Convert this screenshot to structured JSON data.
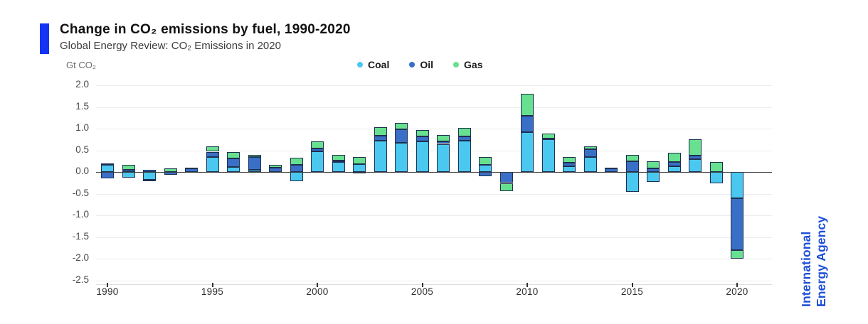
{
  "header": {
    "title": "Change in CO₂ emissions by fuel, 1990-2020",
    "subtitle": "Global Energy Review: CO₂ Emissions in 2020"
  },
  "branding": {
    "logo_line1": "International",
    "logo_line2": "Energy Agency",
    "logo_color": "#1d4fd7",
    "accent_color": "#1433f2"
  },
  "chart_data": {
    "type": "bar",
    "stacked": true,
    "title": "Change in CO₂ emissions by fuel, 1990-2020",
    "subtitle": "Global Energy Review: CO₂ Emissions in 2020",
    "ylabel": "Gt CO₂",
    "xlabel": "",
    "grid": true,
    "legend_position": "top",
    "ylim": [
      -2.5,
      2.0
    ],
    "ytick_step": 0.5,
    "yticks": [
      "2.0",
      "1.5",
      "1.0",
      "0.5",
      "0.0",
      "-0.5",
      "-1.0",
      "-1.5",
      "-2.0",
      "-2.5"
    ],
    "xticks": [
      "1990",
      "1995",
      "2000",
      "2005",
      "2010",
      "2015",
      "2020"
    ],
    "categories": [
      1990,
      1991,
      1992,
      1993,
      1994,
      1995,
      1996,
      1997,
      1998,
      1999,
      2000,
      2001,
      2002,
      2003,
      2004,
      2005,
      2006,
      2007,
      2008,
      2009,
      2010,
      2011,
      2012,
      2013,
      2014,
      2015,
      2016,
      2017,
      2018,
      2019,
      2020
    ],
    "series": [
      {
        "name": "Coal",
        "color": "#4ac8f0",
        "values": [
          0.16,
          -0.12,
          -0.17,
          0,
          0,
          0.35,
          0.12,
          0.05,
          0,
          -0.21,
          0.48,
          0.23,
          0.18,
          0.72,
          0.68,
          0.7,
          0.65,
          0.72,
          0.17,
          0,
          0.92,
          0.75,
          0.14,
          0.35,
          0,
          -0.46,
          -0.23,
          0.13,
          0.3,
          -0.26,
          -0.6
        ]
      },
      {
        "name": "Oil",
        "color": "#3a6fc8",
        "values": [
          -0.15,
          0.05,
          0.06,
          -0.07,
          0.08,
          0.12,
          0.19,
          0.3,
          0.1,
          0.17,
          0.07,
          0.04,
          -0.03,
          0.12,
          0.3,
          0.12,
          0.06,
          0.1,
          -0.1,
          -0.25,
          0.38,
          0.03,
          0.08,
          0.18,
          0.08,
          0.25,
          0.09,
          0.1,
          0.08,
          0,
          -1.2
        ]
      },
      {
        "name": "Gas",
        "color": "#67e08f",
        "values": [
          0.04,
          0.12,
          -0.04,
          0.08,
          0.03,
          0.13,
          0.15,
          0.04,
          0.07,
          0.16,
          0.16,
          0.13,
          0.16,
          0.19,
          0.16,
          0.15,
          0.15,
          0.2,
          0.18,
          -0.18,
          0.5,
          0.1,
          0.13,
          0.07,
          0.02,
          0.14,
          0.16,
          0.22,
          0.37,
          0.24,
          -0.2
        ]
      }
    ]
  }
}
